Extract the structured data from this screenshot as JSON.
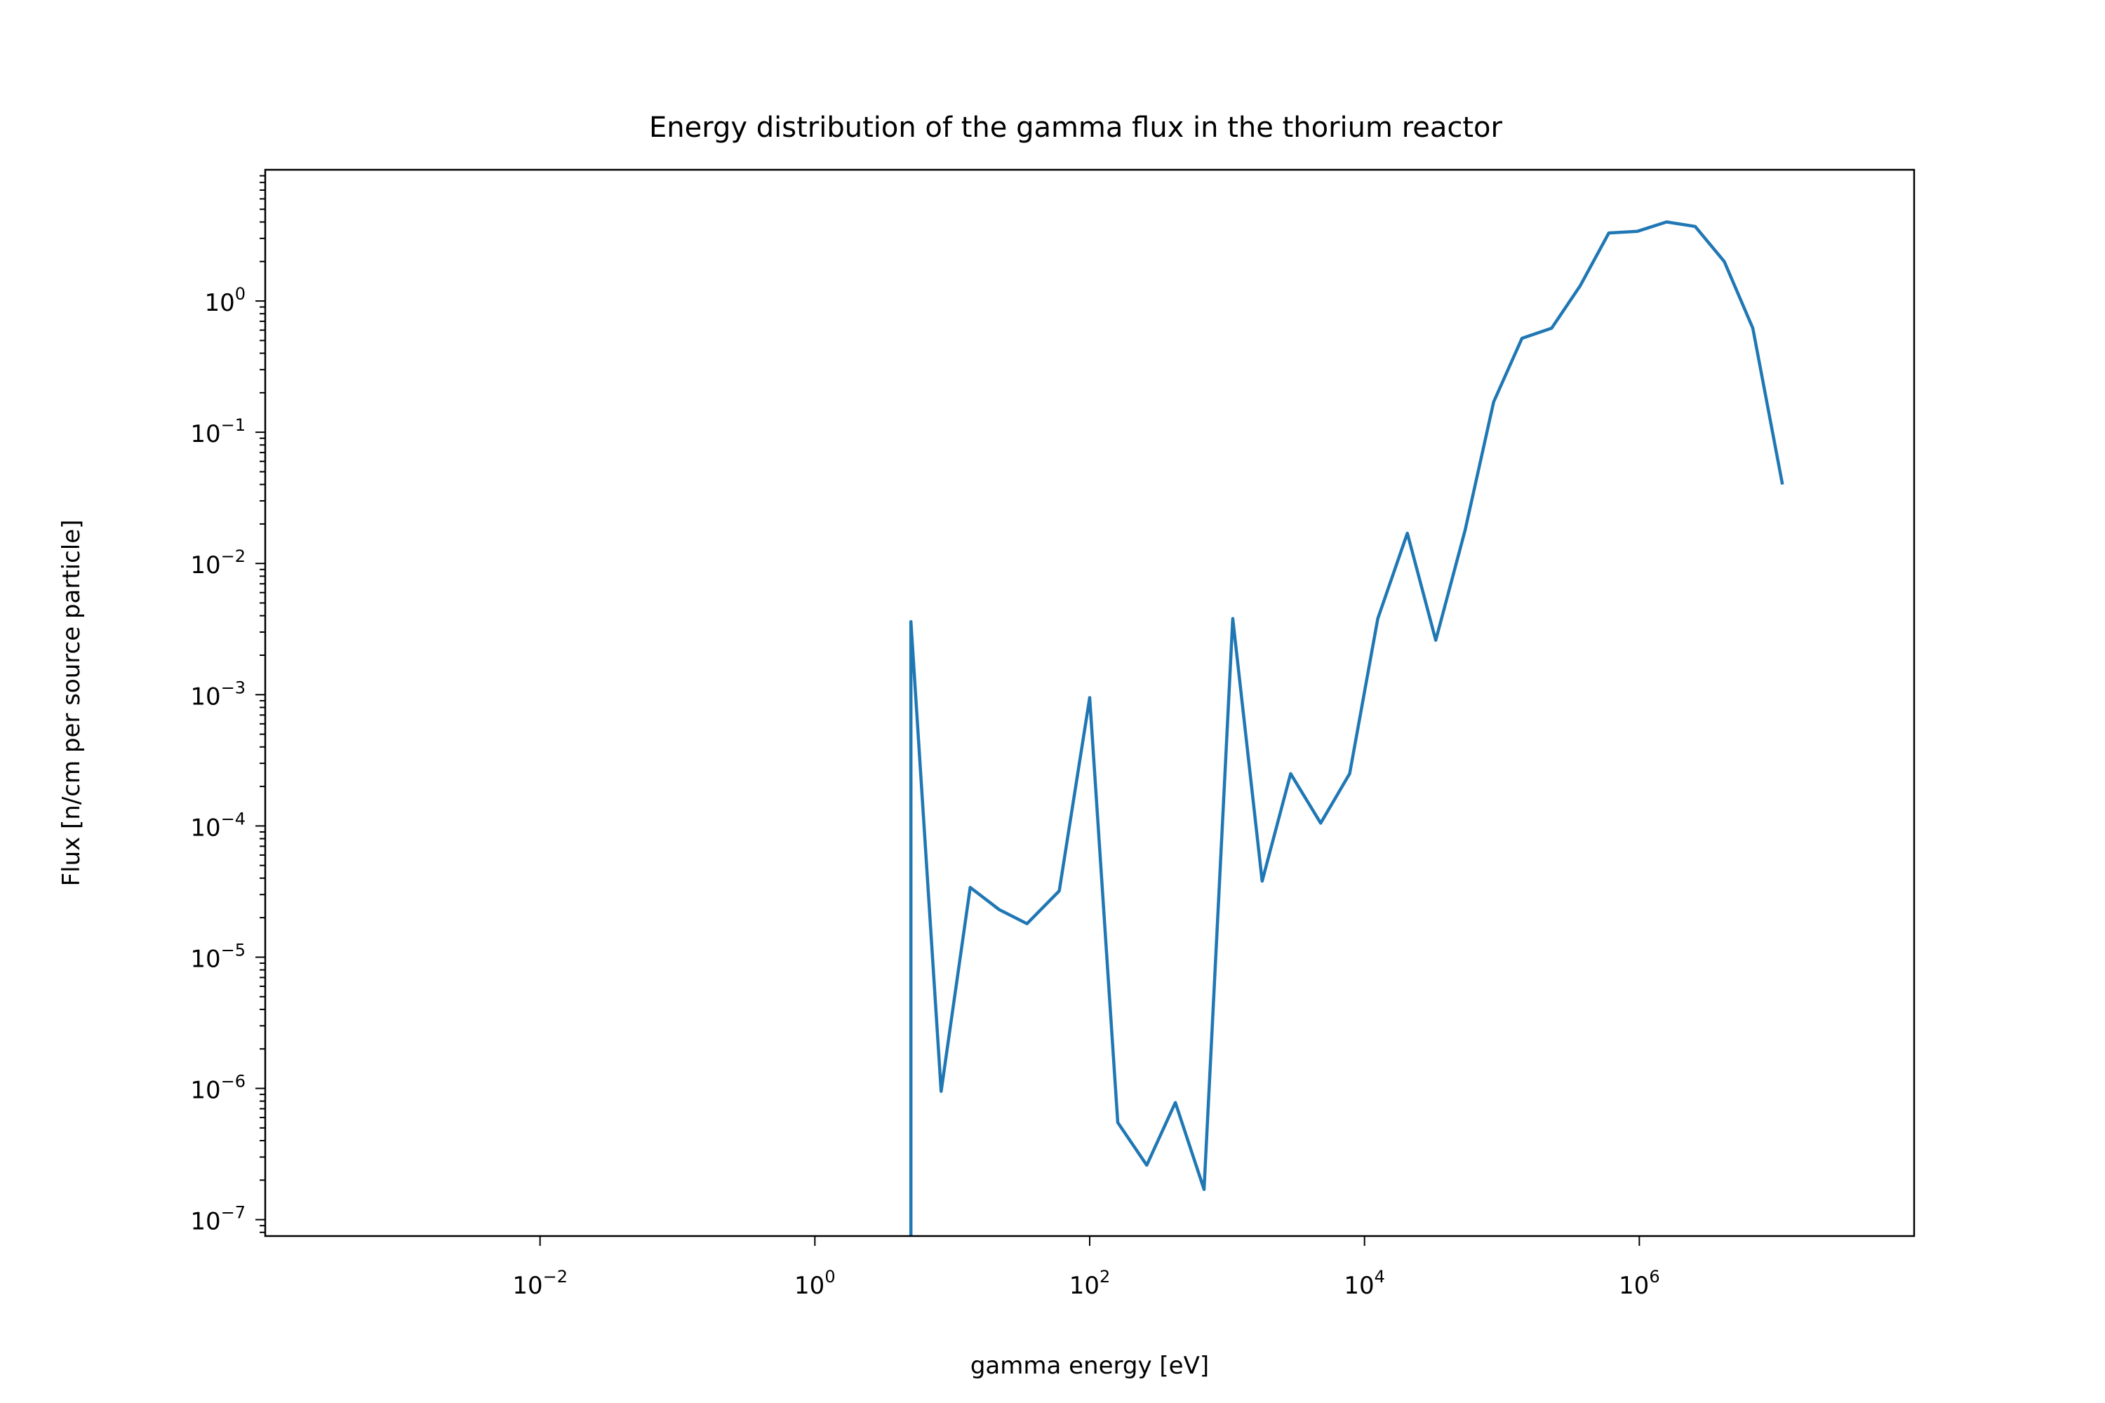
{
  "chart_data": {
    "type": "line",
    "title": "Energy distribution of the gamma flux in the thorium reactor",
    "xlabel": "gamma energy [eV]",
    "ylabel": "Flux [n/cm per source particle]",
    "x_scale": "log",
    "y_scale": "log",
    "xlim": [
      0.0001,
      100000000
    ],
    "ylim": [
      7.5e-08,
      10
    ],
    "grid": false,
    "x_ticks": [
      {
        "value": 0.01,
        "base": "10",
        "exp": "−2"
      },
      {
        "value": 1,
        "base": "10",
        "exp": "0"
      },
      {
        "value": 100,
        "base": "10",
        "exp": "2"
      },
      {
        "value": 10000,
        "base": "10",
        "exp": "4"
      },
      {
        "value": 1000000,
        "base": "10",
        "exp": "6"
      }
    ],
    "y_ticks": [
      {
        "value": 1e-07,
        "base": "10",
        "exp": "−7"
      },
      {
        "value": 1e-06,
        "base": "10",
        "exp": "−6"
      },
      {
        "value": 1e-05,
        "base": "10",
        "exp": "−5"
      },
      {
        "value": 0.0001,
        "base": "10",
        "exp": "−4"
      },
      {
        "value": 0.001,
        "base": "10",
        "exp": "−3"
      },
      {
        "value": 0.01,
        "base": "10",
        "exp": "−2"
      },
      {
        "value": 0.1,
        "base": "10",
        "exp": "−1"
      },
      {
        "value": 1,
        "base": "10",
        "exp": "0"
      }
    ],
    "color": "#1f77b4",
    "series": [
      {
        "x": [
          5,
          5,
          8.3,
          13.5,
          22,
          35,
          60,
          100,
          160,
          260,
          420,
          680,
          1100,
          1800,
          2900,
          4800,
          7800,
          12500,
          20500,
          33000,
          54000,
          87000,
          140000,
          230000,
          370000,
          600000,
          970000,
          1580000,
          2550000,
          4150000,
          6700000,
          11000000
        ],
        "y": [
          6e-08,
          0.0036,
          9.5e-07,
          3.4e-05,
          2.3e-05,
          1.8e-05,
          3.2e-05,
          0.00095,
          5.5e-07,
          2.6e-07,
          7.8e-07,
          1.7e-07,
          0.0038,
          3.8e-05,
          0.00025,
          0.000105,
          0.00025,
          0.0038,
          0.017,
          0.0026,
          0.018,
          0.17,
          0.52,
          0.62,
          1.3,
          3.3,
          3.4,
          4.0,
          3.7,
          2.0,
          0.62,
          0.04
        ]
      }
    ]
  }
}
